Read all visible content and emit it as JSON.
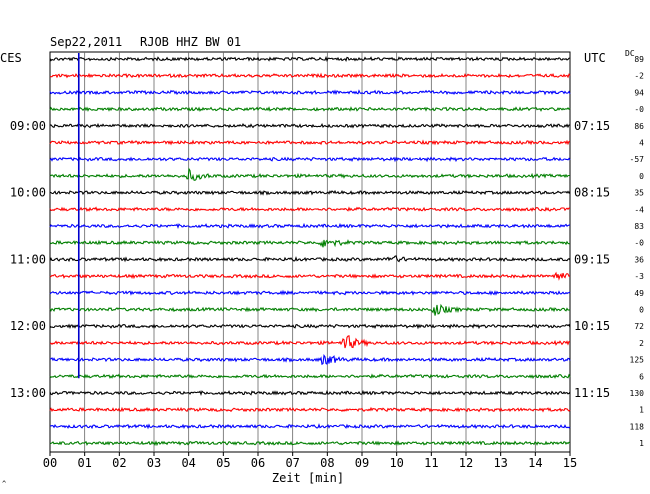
{
  "header": {
    "date": "Sep22,2011",
    "station": "RJOB HHZ BW 01"
  },
  "chart_data": {
    "type": "line",
    "left_axis_label": "CES",
    "right_axis_label": "UTC",
    "dc_label": "DC",
    "xlabel": "Zeit [min]",
    "x_ticks": [
      "00",
      "01",
      "02",
      "03",
      "04",
      "05",
      "06",
      "07",
      "08",
      "09",
      "10",
      "11",
      "12",
      "13",
      "14",
      "15"
    ],
    "xlim": [
      0,
      15
    ],
    "trace_colors": [
      "#000000",
      "#ff0000",
      "#0000ff",
      "#007f00"
    ],
    "grid": true,
    "left_time_labels": [
      {
        "trace": 4,
        "label": "09:00"
      },
      {
        "trace": 8,
        "label": "10:00"
      },
      {
        "trace": 12,
        "label": "11:00"
      },
      {
        "trace": 16,
        "label": "12:00"
      },
      {
        "trace": 20,
        "label": "13:00"
      }
    ],
    "right_time_labels": [
      {
        "trace": 4,
        "label": "07:15"
      },
      {
        "trace": 8,
        "label": "08:15"
      },
      {
        "trace": 12,
        "label": "09:15"
      },
      {
        "trace": 16,
        "label": "10:15"
      },
      {
        "trace": 20,
        "label": "11:15"
      }
    ],
    "dc_offsets": [
      "89",
      "-2",
      "94",
      "-0",
      "86",
      "4",
      "-57",
      "0",
      "35",
      "-4",
      "83",
      "-0",
      "36",
      "-3",
      "49",
      "0",
      "72",
      "2",
      "125",
      "6",
      "130",
      "1",
      "118",
      "1"
    ],
    "trace_count": 24,
    "marker_line_minute": 0.83,
    "events": [
      {
        "trace": 7,
        "minute": 4.0,
        "amplitude": "medium"
      },
      {
        "trace": 11,
        "minute": 7.9,
        "amplitude": "medium"
      },
      {
        "trace": 12,
        "minute": 9.8,
        "amplitude": "small"
      },
      {
        "trace": 13,
        "minute": 14.6,
        "amplitude": "small"
      },
      {
        "trace": 15,
        "minute": 11.1,
        "amplitude": "medium"
      },
      {
        "trace": 17,
        "minute": 8.5,
        "amplitude": "large"
      },
      {
        "trace": 18,
        "minute": 7.9,
        "amplitude": "medium"
      }
    ]
  }
}
